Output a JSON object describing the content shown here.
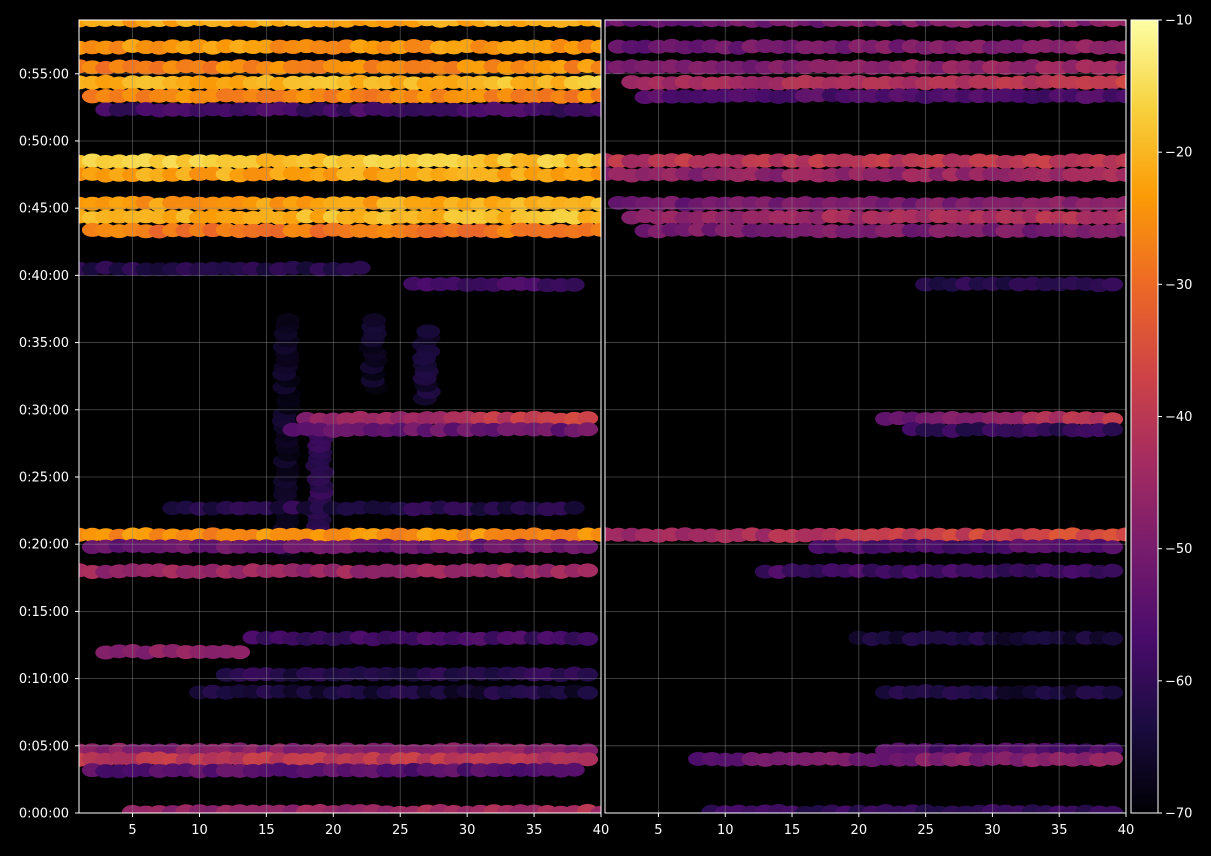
{
  "chart_data": {
    "type": "heatmap",
    "title": "",
    "xlabel": "",
    "ylabel": "",
    "grid": true,
    "background": "#000000",
    "grid_color": "#8a8a8a",
    "colormap": "inferno",
    "colormap_stops": [
      "#000004",
      "#1b0c41",
      "#4a0c6b",
      "#781c6d",
      "#a52c60",
      "#cf4446",
      "#ed6925",
      "#fb9b06",
      "#f7d13d",
      "#fcffa4"
    ],
    "colorbar": {
      "range": [
        -70,
        -10
      ],
      "ticks": [
        -70,
        -60,
        -50,
        -40,
        -30,
        -20,
        -10
      ],
      "tick_labels": [
        "−70",
        "−60",
        "−50",
        "−40",
        "−30",
        "−20",
        "−10"
      ]
    },
    "y_axis": {
      "range_seconds": [
        0,
        3540
      ],
      "ticks_seconds": [
        0,
        300,
        600,
        900,
        1200,
        1500,
        1800,
        2100,
        2400,
        2700,
        3000,
        3300
      ],
      "tick_labels": [
        "0:00:00",
        "0:05:00",
        "0:10:00",
        "0:15:00",
        "0:20:00",
        "0:25:00",
        "0:30:00",
        "0:35:00",
        "0:40:00",
        "0:45:00",
        "0:50:00",
        "0:55:00"
      ]
    },
    "panels": [
      {
        "name": "",
        "x_range": [
          1,
          40
        ],
        "x_ticks": [
          5,
          10,
          15,
          20,
          25,
          30,
          35,
          40
        ],
        "x_tick_labels": [
          "5",
          "10",
          "15",
          "20",
          "25",
          "30",
          "35",
          "40"
        ],
        "bands": [
          {
            "t": 3540,
            "level": -22,
            "x0": 1,
            "x1": 40,
            "tilt": 2
          },
          {
            "t": 3420,
            "level": -24,
            "x0": 1,
            "x1": 40,
            "tilt": 0
          },
          {
            "t": 3330,
            "level": -26,
            "x0": 1,
            "x1": 40,
            "tilt": 2
          },
          {
            "t": 3260,
            "level": -20,
            "x0": 1,
            "x1": 40,
            "tilt": 3
          },
          {
            "t": 3200,
            "level": -26,
            "x0": 2,
            "x1": 40,
            "tilt": 0
          },
          {
            "t": 3140,
            "level": -58,
            "x0": 3,
            "x1": 40,
            "tilt": 0
          },
          {
            "t": 2910,
            "level": -18,
            "x0": 1,
            "x1": 40,
            "tilt": 0
          },
          {
            "t": 2850,
            "level": -22,
            "x0": 1,
            "x1": 40,
            "tilt": 0
          },
          {
            "t": 2720,
            "level": -22,
            "x0": 1,
            "x1": 40,
            "tilt": 3
          },
          {
            "t": 2660,
            "level": -20,
            "x0": 1,
            "x1": 40,
            "tilt": 2
          },
          {
            "t": 2600,
            "level": -28,
            "x0": 2,
            "x1": 40,
            "tilt": 0
          },
          {
            "t": 2430,
            "level": -63,
            "x0": 1,
            "x1": 22,
            "tilt": 0
          },
          {
            "t": 2360,
            "level": -58,
            "x0": 26,
            "x1": 38,
            "tilt": 0
          },
          {
            "t": 1760,
            "level": -42,
            "x0": 18,
            "x1": 39,
            "tilt": 12
          },
          {
            "t": 1710,
            "level": -52,
            "x0": 17,
            "x1": 39,
            "tilt": 0
          },
          {
            "t": 1360,
            "level": -62,
            "x0": 8,
            "x1": 38,
            "tilt": 0
          },
          {
            "t": 1240,
            "level": -25,
            "x0": 1,
            "x1": 40,
            "tilt": 0
          },
          {
            "t": 1190,
            "level": -52,
            "x0": 2,
            "x1": 39,
            "tilt": 0
          },
          {
            "t": 1080,
            "level": -45,
            "x0": 1,
            "x1": 39,
            "tilt": 0
          },
          {
            "t": 780,
            "level": -58,
            "x0": 14,
            "x1": 39,
            "tilt": 0
          },
          {
            "t": 720,
            "level": -48,
            "x0": 3,
            "x1": 13,
            "tilt": 0
          },
          {
            "t": 620,
            "level": -62,
            "x0": 12,
            "x1": 39,
            "tilt": 0
          },
          {
            "t": 540,
            "level": -64,
            "x0": 10,
            "x1": 39,
            "tilt": 0
          },
          {
            "t": 280,
            "level": -48,
            "x0": 1,
            "x1": 39,
            "tilt": 0
          },
          {
            "t": 240,
            "level": -40,
            "x0": 1,
            "x1": 39,
            "tilt": 0
          },
          {
            "t": 190,
            "level": -55,
            "x0": 2,
            "x1": 38,
            "tilt": 0
          },
          {
            "t": 5,
            "level": -45,
            "x0": 5,
            "x1": 40,
            "tilt": 6
          }
        ],
        "columns": [
          {
            "x": 16.5,
            "t0": 1150,
            "t1": 2200,
            "level": -64
          },
          {
            "x": 19,
            "t0": 1250,
            "t1": 1750,
            "level": -58
          },
          {
            "x": 23,
            "t0": 1900,
            "t1": 2200,
            "level": -64
          },
          {
            "x": 27,
            "t0": 1850,
            "t1": 2150,
            "level": -62
          }
        ]
      },
      {
        "name": "",
        "x_range": [
          1,
          40
        ],
        "x_ticks": [
          5,
          10,
          15,
          20,
          25,
          30,
          35,
          40
        ],
        "x_tick_labels": [
          "5",
          "10",
          "15",
          "20",
          "25",
          "30",
          "35",
          "40"
        ],
        "bands": [
          {
            "t": 3540,
            "level": -50,
            "x0": 1,
            "x1": 40,
            "tilt": 4
          },
          {
            "t": 3420,
            "level": -50,
            "x0": 2,
            "x1": 40,
            "tilt": 5
          },
          {
            "t": 3330,
            "level": -48,
            "x0": 1,
            "x1": 40,
            "tilt": 6
          },
          {
            "t": 3260,
            "level": -42,
            "x0": 3,
            "x1": 40,
            "tilt": 6
          },
          {
            "t": 3200,
            "level": -56,
            "x0": 4,
            "x1": 40,
            "tilt": 0
          },
          {
            "t": 2910,
            "level": -40,
            "x0": 1,
            "x1": 40,
            "tilt": 2
          },
          {
            "t": 2850,
            "level": -46,
            "x0": 1,
            "x1": 40,
            "tilt": 4
          },
          {
            "t": 2720,
            "level": -50,
            "x0": 2,
            "x1": 40,
            "tilt": 4
          },
          {
            "t": 2660,
            "level": -44,
            "x0": 3,
            "x1": 40,
            "tilt": 5
          },
          {
            "t": 2600,
            "level": -50,
            "x0": 4,
            "x1": 40,
            "tilt": 0
          },
          {
            "t": 2360,
            "level": -62,
            "x0": 25,
            "x1": 39,
            "tilt": 0
          },
          {
            "t": 1760,
            "level": -46,
            "x0": 22,
            "x1": 39,
            "tilt": 12
          },
          {
            "t": 1710,
            "level": -60,
            "x0": 24,
            "x1": 39,
            "tilt": 0
          },
          {
            "t": 1240,
            "level": -40,
            "x0": 1,
            "x1": 40,
            "tilt": 12
          },
          {
            "t": 1190,
            "level": -56,
            "x0": 17,
            "x1": 39,
            "tilt": 0
          },
          {
            "t": 1080,
            "level": -58,
            "x0": 13,
            "x1": 39,
            "tilt": 0
          },
          {
            "t": 780,
            "level": -64,
            "x0": 20,
            "x1": 39,
            "tilt": 0
          },
          {
            "t": 540,
            "level": -64,
            "x0": 22,
            "x1": 39,
            "tilt": 0
          },
          {
            "t": 280,
            "level": -56,
            "x0": 22,
            "x1": 39,
            "tilt": 0
          },
          {
            "t": 240,
            "level": -50,
            "x0": 8,
            "x1": 39,
            "tilt": 8
          },
          {
            "t": 5,
            "level": -60,
            "x0": 9,
            "x1": 39,
            "tilt": 0
          }
        ],
        "columns": []
      }
    ]
  }
}
